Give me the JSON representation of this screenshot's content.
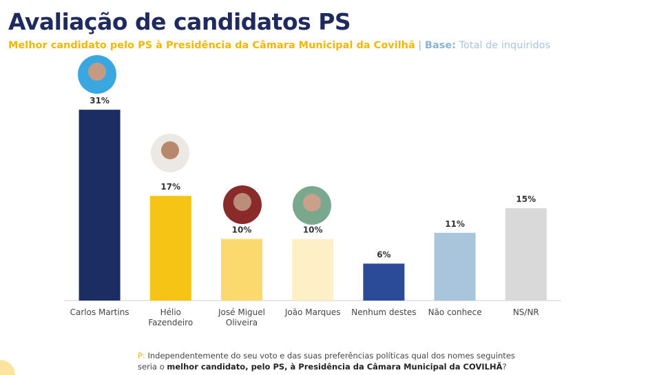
{
  "chart_data": {
    "type": "bar",
    "title": "Avaliação de candidatos PS",
    "subtitle": "Melhor candidato pelo PS à Presidência da Câmara Municipal da Covilhã",
    "separator": "|",
    "base_label": "Base:",
    "base_value": "Total de inquiridos",
    "categories": [
      "Carlos Martins",
      "Hélio Fazendeiro",
      "José Miguel Oliveira",
      "João Marques",
      "Nenhum destes",
      "Não conhece",
      "NS/NR"
    ],
    "values": [
      31,
      17,
      10,
      10,
      6,
      11,
      15
    ],
    "value_labels": [
      "31%",
      "17%",
      "10%",
      "10%",
      "6%",
      "11%",
      "15%"
    ],
    "colors": [
      "#1b2d62",
      "#f6c415",
      "#fcd96e",
      "#fdf0c6",
      "#2b4a98",
      "#a9c5dc",
      "#d9d9d9"
    ],
    "footnote": {
      "prefix": "P:",
      "text": "Independentemente do seu voto e das suas preferências políticas qual dos nomes seguintes seria o ",
      "bold": "melhor candidato, pelo PS, à Presidência da Câmara Municipal da COVILHÃ",
      "end": "?"
    }
  }
}
